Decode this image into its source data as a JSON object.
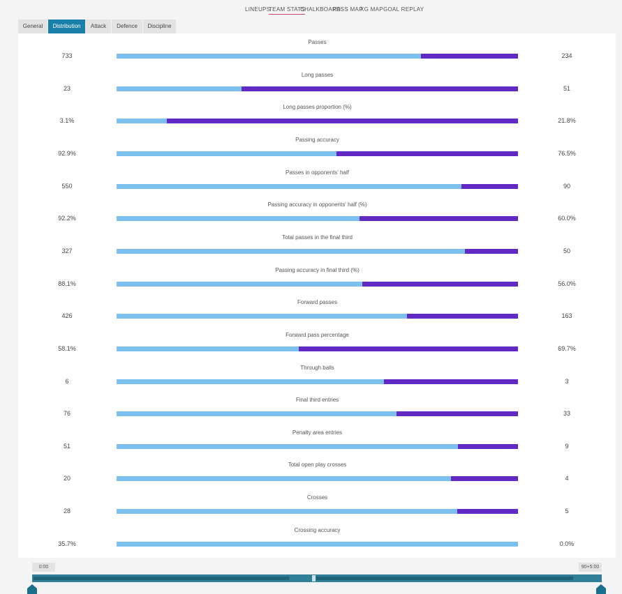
{
  "nav": {
    "links": [
      "LINEUPS",
      "TEAM STATS",
      "CHALKBOARD",
      "PASS MAP",
      "XG MAP",
      "GOAL REPLAY"
    ],
    "active": 1
  },
  "tabs": {
    "items": [
      "General",
      "Distribution",
      "Attack",
      "Defence",
      "Discipline"
    ],
    "active": 1
  },
  "colors": {
    "home": "#7bc0ee",
    "away": "#6128c4"
  },
  "stats": [
    {
      "label": "Passes",
      "values": [
        733,
        234
      ]
    },
    {
      "label": "Long passes",
      "values": [
        23,
        51
      ]
    },
    {
      "label": "Long passes proportion (%)",
      "values": [
        3.1,
        21.8
      ],
      "value_labels": [
        "3.1%",
        "21.8%"
      ]
    },
    {
      "label": "Passing accuracy",
      "values": [
        92.9,
        76.5
      ],
      "value_labels": [
        "92.9%",
        "76.5%"
      ]
    },
    {
      "label": "Passes in opponents' half",
      "values": [
        550,
        90
      ]
    },
    {
      "label": "Passing accuracy in opponents' half (%)",
      "values": [
        92.2,
        60.0
      ],
      "value_labels": [
        "92.2%",
        "60.0%"
      ]
    },
    {
      "label": "Total passes in the final third",
      "values": [
        327,
        50
      ]
    },
    {
      "label": "Passing accuracy in final third (%)",
      "values": [
        88.1,
        56.0
      ],
      "value_labels": [
        "88.1%",
        "56.0%"
      ]
    },
    {
      "label": "Forward passes",
      "values": [
        426,
        163
      ]
    },
    {
      "label": "Forward pass percentage",
      "values": [
        58.1,
        69.7
      ],
      "value_labels": [
        "58.1%",
        "69.7%"
      ]
    },
    {
      "label": "Through balls",
      "values": [
        6,
        3
      ]
    },
    {
      "label": "Final third entries",
      "values": [
        76,
        33
      ]
    },
    {
      "label": "Penalty area entries",
      "values": [
        51,
        9
      ]
    },
    {
      "label": "Total open play crosses",
      "values": [
        20,
        4
      ]
    },
    {
      "label": "Crosses",
      "values": [
        28,
        5
      ]
    },
    {
      "label": "Crossing accuracy",
      "values": [
        35.7,
        0.0
      ],
      "value_labels": [
        "35.7%",
        "0.0%"
      ]
    }
  ],
  "timeline": {
    "start": "0:00",
    "end": "90+5:00"
  }
}
